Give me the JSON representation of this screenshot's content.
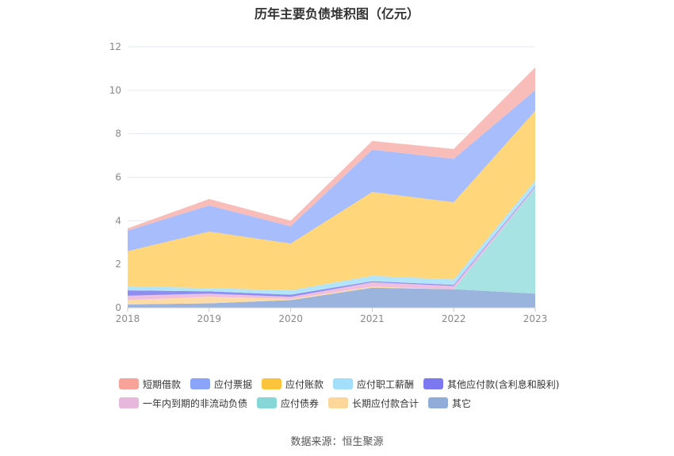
{
  "chart_data": {
    "type": "area",
    "title": "历年主要负债堆积图（亿元）",
    "categories": [
      "2018",
      "2019",
      "2020",
      "2021",
      "2022",
      "2023"
    ],
    "ylim": [
      0,
      12
    ],
    "yticks": [
      0,
      2,
      4,
      6,
      8,
      10,
      12
    ],
    "grid": true,
    "legend_position": "bottom",
    "stacked": true,
    "series": [
      {
        "name": "其它",
        "color": "#9ab4de",
        "values": [
          0.15,
          0.2,
          0.35,
          0.92,
          0.85,
          0.65
        ]
      },
      {
        "name": "长期应付款合计",
        "color": "#ffdca6",
        "values": [
          0.2,
          0.3,
          0.05,
          0.05,
          0.0,
          0.0
        ]
      },
      {
        "name": "应付债券",
        "color": "#a6e3e2",
        "values": [
          0.0,
          0.0,
          0.0,
          0.0,
          0.0,
          4.85
        ]
      },
      {
        "name": "一年内到期的非流动负债",
        "color": "#eebfe0",
        "values": [
          0.2,
          0.15,
          0.1,
          0.2,
          0.15,
          0.05
        ]
      },
      {
        "name": "其他应付款(含利息和股利)",
        "color": "#8e8ef2",
        "values": [
          0.25,
          0.1,
          0.1,
          0.05,
          0.05,
          0.05
        ]
      },
      {
        "name": "应付职工薪酬",
        "color": "#b3e4f8",
        "values": [
          0.2,
          0.15,
          0.2,
          0.25,
          0.25,
          0.25
        ]
      },
      {
        "name": "应付账款",
        "color": "#ffd67a",
        "values": [
          1.6,
          2.6,
          2.15,
          3.85,
          3.55,
          3.2
        ]
      },
      {
        "name": "应付票据",
        "color": "#a8bdfc",
        "values": [
          0.95,
          1.2,
          0.8,
          1.95,
          2.0,
          0.95
        ]
      },
      {
        "name": "短期借款",
        "color": "#f8bdb8",
        "values": [
          0.1,
          0.3,
          0.25,
          0.4,
          0.45,
          1.05
        ]
      }
    ]
  },
  "legend": {
    "row1": [
      {
        "label": "短期借款",
        "color": "#f7a39a"
      },
      {
        "label": "应付票据",
        "color": "#8aa4fa"
      },
      {
        "label": "应付账款",
        "color": "#fcc43d"
      },
      {
        "label": "应付职工薪酬",
        "color": "#a3defa"
      },
      {
        "label": "其他应付款(含利息和股利)",
        "color": "#7b78f0"
      }
    ],
    "row2": [
      {
        "label": "一年内到期的非流动负债",
        "color": "#e8b8dc"
      },
      {
        "label": "应付债券",
        "color": "#86d8d8"
      },
      {
        "label": "长期应付款合计",
        "color": "#fdd79a"
      },
      {
        "label": "其它",
        "color": "#91acd8"
      }
    ]
  },
  "source": "数据来源：恒生聚源"
}
